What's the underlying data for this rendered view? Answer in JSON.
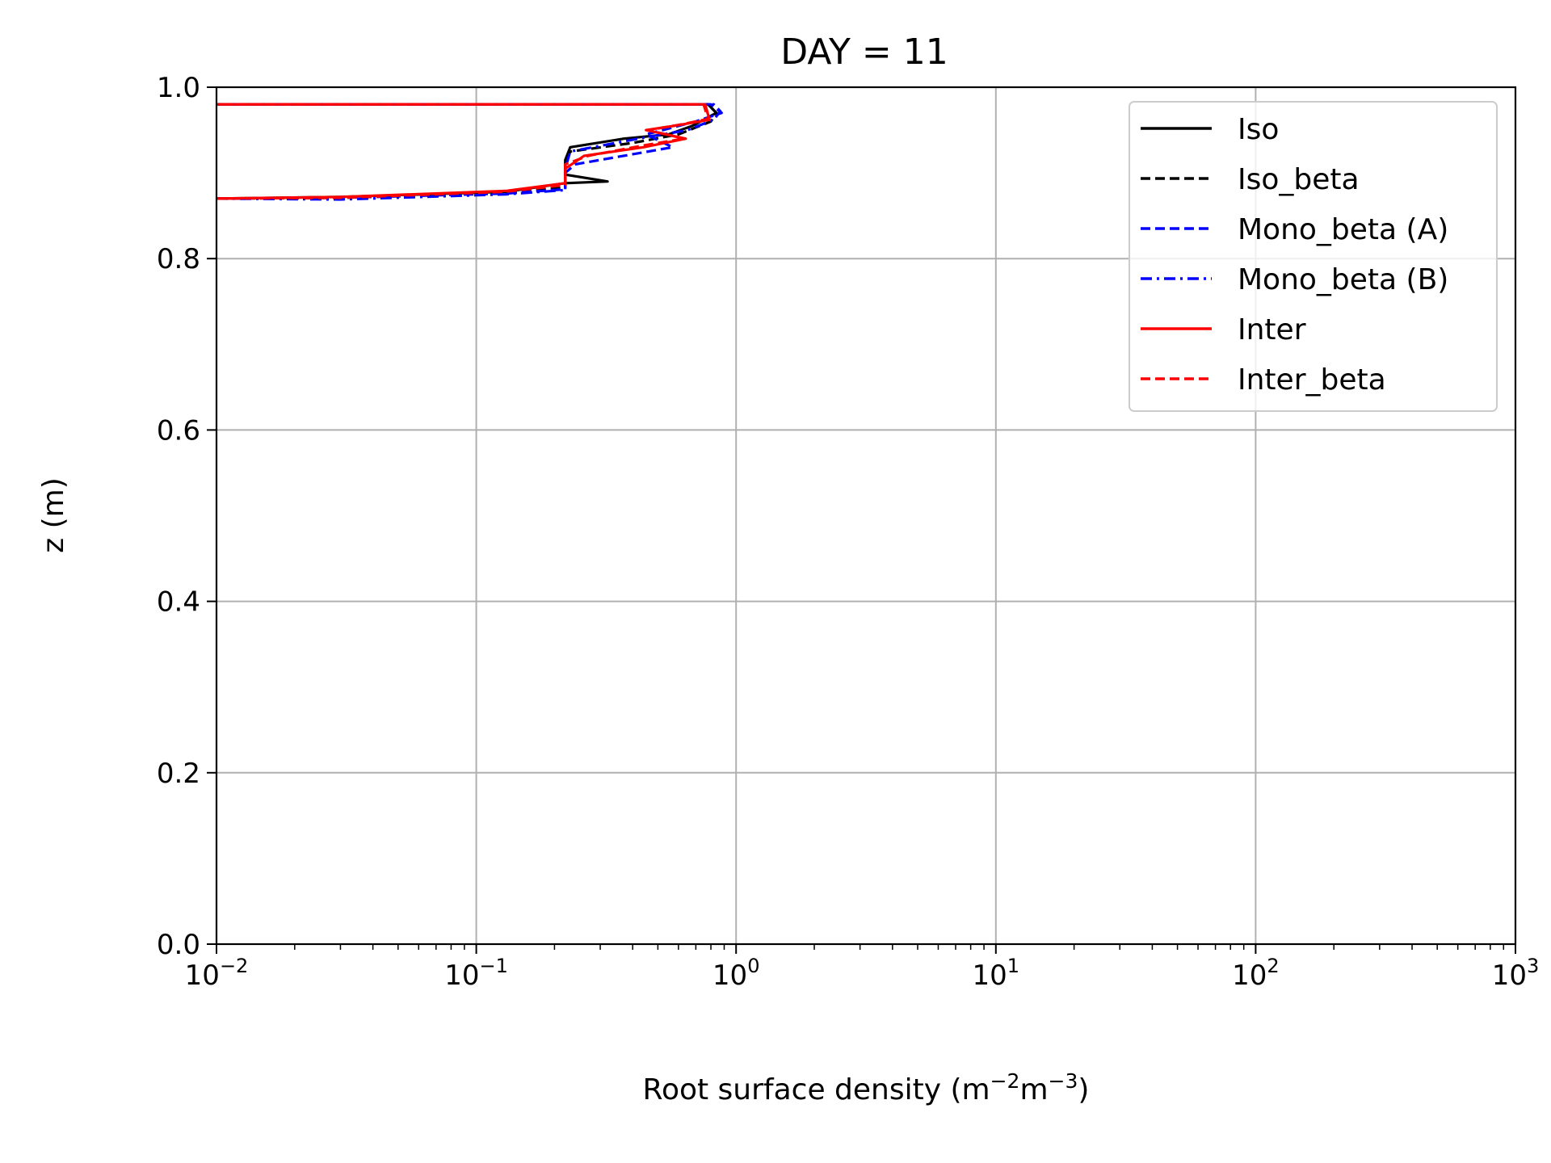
{
  "chart_data": {
    "type": "line",
    "title": "DAY = 11",
    "xlabel": "Root surface density (m",
    "xlabel_sup1": "−2",
    "xlabel_mid": "m",
    "xlabel_sup2": "−3",
    "xlabel_end": ")",
    "ylabel": "z (m)",
    "xscale": "log",
    "xlim": [
      0.01,
      1000
    ],
    "ylim": [
      0.0,
      1.0
    ],
    "grid": true,
    "legend_position": "top-right",
    "x_ticks": [
      {
        "value": 0.01,
        "base": "10",
        "exp": "−2"
      },
      {
        "value": 0.1,
        "base": "10",
        "exp": "−1"
      },
      {
        "value": 1,
        "base": "10",
        "exp": "0"
      },
      {
        "value": 10,
        "base": "10",
        "exp": "1"
      },
      {
        "value": 100,
        "base": "10",
        "exp": "2"
      },
      {
        "value": 1000,
        "base": "10",
        "exp": "3"
      }
    ],
    "y_ticks": [
      {
        "value": 0.0,
        "label": "0.0"
      },
      {
        "value": 0.2,
        "label": "0.2"
      },
      {
        "value": 0.4,
        "label": "0.4"
      },
      {
        "value": 0.6,
        "label": "0.6"
      },
      {
        "value": 0.8,
        "label": "0.8"
      },
      {
        "value": 1.0,
        "label": "1.0"
      }
    ],
    "series": [
      {
        "name": "Iso",
        "color": "#000000",
        "dash": "solid",
        "x": [
          0.01,
          0.03,
          0.13,
          0.22,
          0.32,
          0.22,
          0.22,
          0.23,
          0.37,
          0.55,
          0.68,
          0.84,
          0.78,
          0.01
        ],
        "y": [
          0.87,
          0.872,
          0.878,
          0.888,
          0.89,
          0.898,
          0.915,
          0.93,
          0.94,
          0.945,
          0.955,
          0.97,
          0.98,
          0.98
        ]
      },
      {
        "name": "Iso_beta",
        "color": "#000000",
        "dash": "dashed",
        "x": [
          0.01,
          0.03,
          0.13,
          0.22,
          0.22,
          0.23,
          0.4,
          0.6,
          0.8,
          0.84,
          0.78,
          0.01
        ],
        "y": [
          0.87,
          0.871,
          0.877,
          0.883,
          0.91,
          0.925,
          0.935,
          0.945,
          0.96,
          0.97,
          0.98,
          0.98
        ]
      },
      {
        "name": "Mono_beta (A)",
        "color": "#0000ff",
        "dash": "dashed",
        "x": [
          0.01,
          0.03,
          0.13,
          0.22,
          0.22,
          0.24,
          0.57,
          0.45,
          0.7,
          0.88,
          0.8,
          0.01
        ],
        "y": [
          0.87,
          0.871,
          0.876,
          0.881,
          0.9,
          0.91,
          0.93,
          0.945,
          0.96,
          0.97,
          0.98,
          0.98
        ]
      },
      {
        "name": "Mono_beta (B)",
        "color": "#0000ff",
        "dash": "dashdot",
        "x": [
          0.01,
          0.03,
          0.13,
          0.22,
          0.22,
          0.23,
          0.42,
          0.65,
          0.82,
          0.87,
          0.82,
          0.01
        ],
        "y": [
          0.87,
          0.869,
          0.875,
          0.88,
          0.905,
          0.925,
          0.94,
          0.95,
          0.962,
          0.972,
          0.98,
          0.98
        ]
      },
      {
        "name": "Inter",
        "color": "#ff0000",
        "dash": "solid",
        "x": [
          0.01,
          0.03,
          0.13,
          0.22,
          0.22,
          0.26,
          0.44,
          0.64,
          0.45,
          0.58,
          0.79,
          0.76,
          0.01
        ],
        "y": [
          0.87,
          0.872,
          0.879,
          0.888,
          0.905,
          0.92,
          0.93,
          0.94,
          0.95,
          0.955,
          0.962,
          0.98,
          0.98
        ]
      },
      {
        "name": "Inter_beta",
        "color": "#ff0000",
        "dash": "dashed",
        "x": [
          0.01,
          0.03,
          0.13,
          0.22,
          0.22,
          0.27,
          0.44,
          0.63,
          0.46,
          0.6,
          0.78,
          0.75,
          0.01
        ],
        "y": [
          0.87,
          0.871,
          0.878,
          0.886,
          0.91,
          0.92,
          0.932,
          0.94,
          0.95,
          0.956,
          0.963,
          0.98,
          0.98
        ]
      }
    ]
  }
}
